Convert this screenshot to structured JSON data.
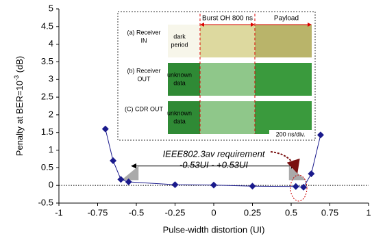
{
  "chart_data": {
    "type": "line",
    "x_label": "Pulse-width distortion (UI)",
    "y_label": {
      "text": "Penalty at BER=10",
      "superscript": "-3",
      "unit": " (dB)"
    },
    "x": [
      -0.7,
      -0.65,
      -0.6,
      -0.55,
      -0.25,
      0,
      0.25,
      0.53,
      0.58,
      0.63,
      0.69
    ],
    "series": [
      {
        "color": "#1a1a8c",
        "values": [
          1.6,
          0.7,
          0.17,
          0.1,
          0.02,
          0.01,
          -0.02,
          -0.03,
          -0.05,
          0.33,
          1.43
        ]
      }
    ],
    "xlim": [
      -1,
      1
    ],
    "xticks": [
      -1,
      -0.75,
      -0.5,
      -0.25,
      0,
      0.25,
      0.5,
      0.75,
      1
    ],
    "ylim": [
      -0.5,
      5
    ],
    "yticks": [
      -0.5,
      0,
      0.5,
      1,
      1.5,
      2,
      2.5,
      3,
      3.5,
      4,
      4.5,
      5
    ],
    "annotation": {
      "lines": [
        "IEEE802.3av requirement",
        "-0.53UI - +0.53UI"
      ],
      "range": [
        -0.53,
        0.53
      ],
      "y": 0.55
    }
  },
  "inset": {
    "header": [
      "Burst OH 800 ns",
      "Payload"
    ],
    "rows": [
      {
        "label": [
          "(a) Receiver",
          "IN"
        ],
        "note": [
          "dark",
          "period"
        ]
      },
      {
        "label": [
          "(b) Receiver",
          "OUT"
        ],
        "note": [
          "unknown",
          "data"
        ]
      },
      {
        "label": [
          "(C) CDR OUT"
        ],
        "note": [
          "unknown",
          "data"
        ]
      }
    ],
    "scale": "200 ns/div."
  }
}
